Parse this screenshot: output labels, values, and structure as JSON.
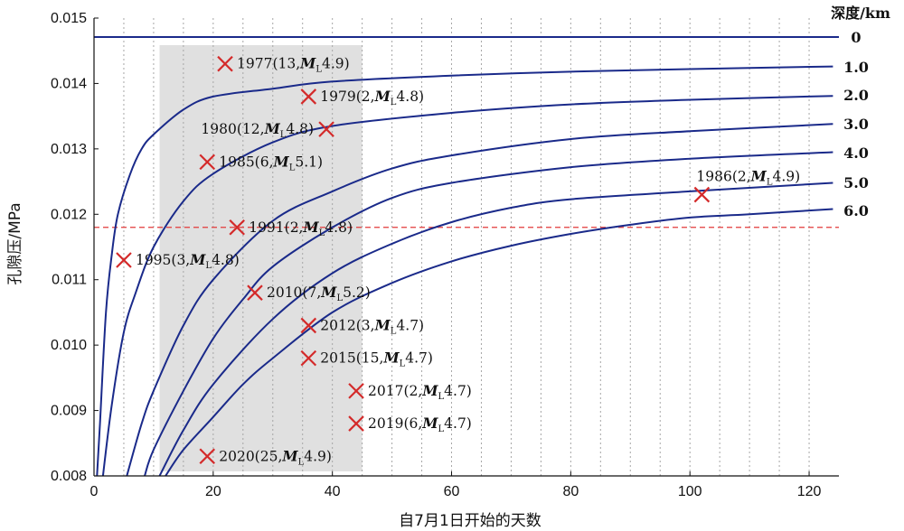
{
  "chart_data": {
    "type": "line",
    "title": "",
    "xlabel": "自7月1日开始的天数",
    "ylabel": "孔隙压/MPa",
    "xlim": [
      0,
      125
    ],
    "ylim": [
      0.008,
      0.015
    ],
    "x_ticks": [
      "0",
      "20",
      "40",
      "60",
      "80",
      "100",
      "120"
    ],
    "y_ticks": [
      "0.008",
      "0.009",
      "0.010",
      "0.011",
      "0.012",
      "0.013",
      "0.014",
      "0.015"
    ],
    "grid": "vertical dotted every 5 days",
    "legend_title": "深度/km",
    "depth_labels": [
      "0",
      "1.0",
      "2.0",
      "3.0",
      "4.0",
      "5.0",
      "6.0"
    ],
    "line_color": "#1a2a8a",
    "marker_color": "#d42a2a",
    "threshold_color": "#e23a3a",
    "shade_color": "#e0e0e0",
    "shaded_range": [
      11,
      45
    ],
    "threshold_y": 0.0118,
    "series": [
      {
        "depth": "0",
        "points": [
          [
            0,
            0.01471
          ],
          [
            125,
            0.01471
          ]
        ]
      },
      {
        "depth": "1.0",
        "points": [
          [
            0.5,
            0.008
          ],
          [
            1,
            0.0088
          ],
          [
            2,
            0.0105
          ],
          [
            3,
            0.0114
          ],
          [
            4,
            0.012
          ],
          [
            6,
            0.0126
          ],
          [
            8,
            0.013
          ],
          [
            10,
            0.01322
          ],
          [
            15,
            0.0136
          ],
          [
            20,
            0.0138
          ],
          [
            30,
            0.01392
          ],
          [
            40,
            0.01403
          ],
          [
            60,
            0.01412
          ],
          [
            80,
            0.01418
          ],
          [
            100,
            0.01422
          ],
          [
            124,
            0.01426
          ]
        ]
      },
      {
        "depth": "2.0",
        "points": [
          [
            1.5,
            0.008
          ],
          [
            3,
            0.0091
          ],
          [
            5,
            0.0102
          ],
          [
            7,
            0.0108
          ],
          [
            10,
            0.0115
          ],
          [
            15,
            0.0122
          ],
          [
            20,
            0.01262
          ],
          [
            30,
            0.0131
          ],
          [
            40,
            0.01335
          ],
          [
            60,
            0.01355
          ],
          [
            80,
            0.01368
          ],
          [
            100,
            0.01375
          ],
          [
            124,
            0.01381
          ]
        ]
      },
      {
        "depth": "3.0",
        "points": [
          [
            5.5,
            0.008
          ],
          [
            8,
            0.0088
          ],
          [
            10,
            0.0093
          ],
          [
            15,
            0.0103
          ],
          [
            20,
            0.011
          ],
          [
            30,
            0.0119
          ],
          [
            40,
            0.01235
          ],
          [
            50,
            0.0127
          ],
          [
            60,
            0.0129
          ],
          [
            80,
            0.01315
          ],
          [
            100,
            0.01327
          ],
          [
            124,
            0.01338
          ]
        ]
      },
      {
        "depth": "4.0",
        "points": [
          [
            8.5,
            0.008
          ],
          [
            10,
            0.0084
          ],
          [
            15,
            0.0093
          ],
          [
            20,
            0.0101
          ],
          [
            25,
            0.0107
          ],
          [
            30,
            0.0112
          ],
          [
            40,
            0.0118
          ],
          [
            50,
            0.01225
          ],
          [
            60,
            0.01248
          ],
          [
            80,
            0.01272
          ],
          [
            100,
            0.01285
          ],
          [
            124,
            0.01295
          ]
        ]
      },
      {
        "depth": "5.0",
        "points": [
          [
            11,
            0.008
          ],
          [
            15,
            0.0087
          ],
          [
            20,
            0.0094
          ],
          [
            30,
            0.0104
          ],
          [
            40,
            0.0111
          ],
          [
            50,
            0.01155
          ],
          [
            60,
            0.01188
          ],
          [
            70,
            0.0121
          ],
          [
            80,
            0.01223
          ],
          [
            100,
            0.01235
          ],
          [
            124,
            0.01248
          ]
        ]
      },
      {
        "depth": "6.0",
        "points": [
          [
            12,
            0.008
          ],
          [
            15,
            0.0084
          ],
          [
            20,
            0.0089
          ],
          [
            25,
            0.0094
          ],
          [
            30,
            0.0098
          ],
          [
            40,
            0.0105
          ],
          [
            50,
            0.01095
          ],
          [
            60,
            0.01128
          ],
          [
            70,
            0.01152
          ],
          [
            80,
            0.0117
          ],
          [
            90,
            0.01184
          ],
          [
            100,
            0.01195
          ],
          [
            110,
            0.012
          ],
          [
            124,
            0.01208
          ]
        ]
      }
    ],
    "events": [
      {
        "x": 22,
        "y": 0.0143,
        "label": "1977(13,",
        "mag": "4.9)"
      },
      {
        "x": 36,
        "y": 0.0138,
        "label": "1979(2,",
        "mag": "4.8)"
      },
      {
        "x": 39,
        "y": 0.0133,
        "label": "1980(12,",
        "mag": "4.8)"
      },
      {
        "x": 19,
        "y": 0.0128,
        "label": "1985(6,",
        "mag": "5.1)"
      },
      {
        "x": 102,
        "y": 0.0123,
        "label": "1986(2,",
        "mag": "4.9)"
      },
      {
        "x": 24,
        "y": 0.0118,
        "label": "1991(2,",
        "mag": "4.8)"
      },
      {
        "x": 5,
        "y": 0.0113,
        "label": "1995(3,",
        "mag": "4.8)"
      },
      {
        "x": 27,
        "y": 0.0108,
        "label": "2010(7,",
        "mag": "5.2)"
      },
      {
        "x": 36,
        "y": 0.0103,
        "label": "2012(3,",
        "mag": "4.7)"
      },
      {
        "x": 36,
        "y": 0.0098,
        "label": "2015(15,",
        "mag": "4.7)"
      },
      {
        "x": 44,
        "y": 0.0093,
        "label": "2017(2,",
        "mag": "4.7)"
      },
      {
        "x": 44,
        "y": 0.0088,
        "label": "2019(6,",
        "mag": "4.7)"
      },
      {
        "x": 19,
        "y": 0.0083,
        "label": "2020(25,",
        "mag": "4.9)"
      }
    ],
    "mag_symbol": "M",
    "mag_subscript": "L"
  }
}
